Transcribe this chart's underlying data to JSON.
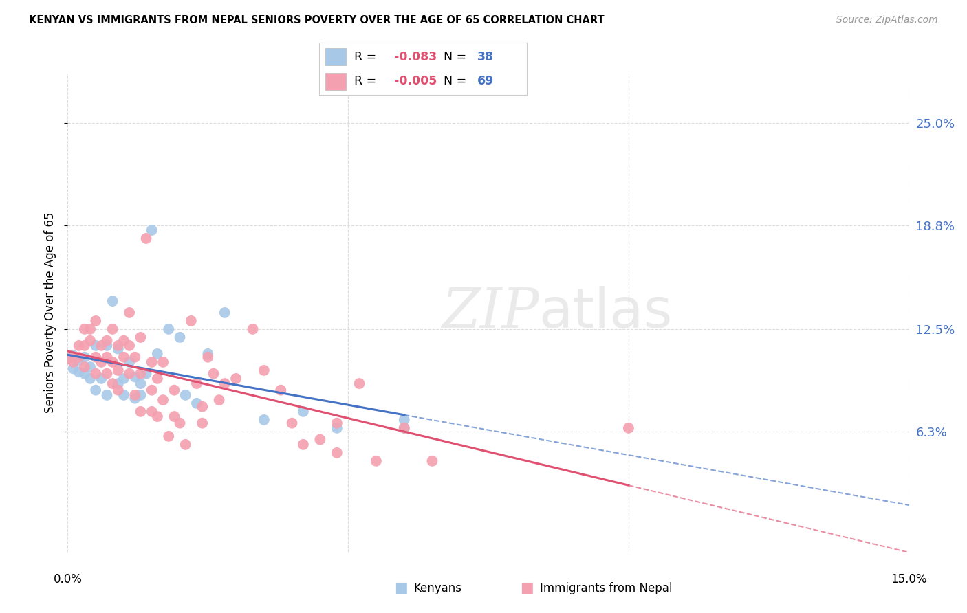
{
  "title": "KENYAN VS IMMIGRANTS FROM NEPAL SENIORS POVERTY OVER THE AGE OF 65 CORRELATION CHART",
  "source": "Source: ZipAtlas.com",
  "ylabel": "Seniors Poverty Over the Age of 65",
  "ytick_labels": [
    "25.0%",
    "18.8%",
    "12.5%",
    "6.3%"
  ],
  "ytick_values": [
    0.25,
    0.188,
    0.125,
    0.063
  ],
  "xlim": [
    0.0,
    0.15
  ],
  "ylim": [
    -0.01,
    0.28
  ],
  "legend_r_kenyan": "-0.083",
  "legend_n_kenyan": "38",
  "legend_r_nepal": "-0.005",
  "legend_n_nepal": "69",
  "kenyan_color": "#A8C8E8",
  "nepal_color": "#F4A0B0",
  "kenyan_line_color": "#4472C4",
  "nepal_line_color": "#E05070",
  "kenyan_scatter": [
    [
      0.0,
      0.107
    ],
    [
      0.001,
      0.109
    ],
    [
      0.001,
      0.101
    ],
    [
      0.002,
      0.106
    ],
    [
      0.002,
      0.099
    ],
    [
      0.003,
      0.108
    ],
    [
      0.003,
      0.098
    ],
    [
      0.004,
      0.102
    ],
    [
      0.004,
      0.095
    ],
    [
      0.005,
      0.115
    ],
    [
      0.005,
      0.088
    ],
    [
      0.006,
      0.095
    ],
    [
      0.007,
      0.115
    ],
    [
      0.007,
      0.085
    ],
    [
      0.008,
      0.142
    ],
    [
      0.009,
      0.113
    ],
    [
      0.009,
      0.092
    ],
    [
      0.01,
      0.095
    ],
    [
      0.01,
      0.085
    ],
    [
      0.011,
      0.105
    ],
    [
      0.012,
      0.096
    ],
    [
      0.012,
      0.083
    ],
    [
      0.013,
      0.092
    ],
    [
      0.013,
      0.085
    ],
    [
      0.014,
      0.098
    ],
    [
      0.015,
      0.185
    ],
    [
      0.016,
      0.11
    ],
    [
      0.018,
      0.125
    ],
    [
      0.02,
      0.12
    ],
    [
      0.021,
      0.085
    ],
    [
      0.023,
      0.08
    ],
    [
      0.025,
      0.11
    ],
    [
      0.028,
      0.135
    ],
    [
      0.035,
      0.07
    ],
    [
      0.042,
      0.075
    ],
    [
      0.048,
      0.065
    ],
    [
      0.06,
      0.07
    ],
    [
      0.06,
      0.065
    ]
  ],
  "nepal_scatter": [
    [
      0.0,
      0.107
    ],
    [
      0.001,
      0.108
    ],
    [
      0.001,
      0.105
    ],
    [
      0.002,
      0.115
    ],
    [
      0.002,
      0.108
    ],
    [
      0.003,
      0.125
    ],
    [
      0.003,
      0.115
    ],
    [
      0.003,
      0.102
    ],
    [
      0.004,
      0.125
    ],
    [
      0.004,
      0.118
    ],
    [
      0.005,
      0.13
    ],
    [
      0.005,
      0.108
    ],
    [
      0.005,
      0.098
    ],
    [
      0.006,
      0.115
    ],
    [
      0.006,
      0.105
    ],
    [
      0.007,
      0.118
    ],
    [
      0.007,
      0.108
    ],
    [
      0.007,
      0.098
    ],
    [
      0.008,
      0.125
    ],
    [
      0.008,
      0.105
    ],
    [
      0.008,
      0.092
    ],
    [
      0.009,
      0.115
    ],
    [
      0.009,
      0.1
    ],
    [
      0.009,
      0.088
    ],
    [
      0.01,
      0.118
    ],
    [
      0.01,
      0.108
    ],
    [
      0.011,
      0.135
    ],
    [
      0.011,
      0.115
    ],
    [
      0.011,
      0.098
    ],
    [
      0.012,
      0.108
    ],
    [
      0.012,
      0.085
    ],
    [
      0.013,
      0.12
    ],
    [
      0.013,
      0.098
    ],
    [
      0.013,
      0.075
    ],
    [
      0.014,
      0.18
    ],
    [
      0.015,
      0.105
    ],
    [
      0.015,
      0.088
    ],
    [
      0.015,
      0.075
    ],
    [
      0.016,
      0.095
    ],
    [
      0.016,
      0.072
    ],
    [
      0.017,
      0.105
    ],
    [
      0.017,
      0.082
    ],
    [
      0.018,
      0.06
    ],
    [
      0.019,
      0.088
    ],
    [
      0.019,
      0.072
    ],
    [
      0.02,
      0.068
    ],
    [
      0.021,
      0.055
    ],
    [
      0.022,
      0.13
    ],
    [
      0.023,
      0.092
    ],
    [
      0.024,
      0.078
    ],
    [
      0.024,
      0.068
    ],
    [
      0.025,
      0.108
    ],
    [
      0.026,
      0.098
    ],
    [
      0.027,
      0.082
    ],
    [
      0.028,
      0.092
    ],
    [
      0.03,
      0.095
    ],
    [
      0.033,
      0.125
    ],
    [
      0.035,
      0.1
    ],
    [
      0.038,
      0.088
    ],
    [
      0.04,
      0.068
    ],
    [
      0.042,
      0.055
    ],
    [
      0.045,
      0.058
    ],
    [
      0.048,
      0.05
    ],
    [
      0.048,
      0.068
    ],
    [
      0.052,
      0.092
    ],
    [
      0.055,
      0.045
    ],
    [
      0.06,
      0.065
    ],
    [
      0.065,
      0.045
    ],
    [
      0.1,
      0.065
    ]
  ],
  "background_color": "#FFFFFF",
  "grid_color": "#DDDDDD",
  "watermark_color": "#CCCCCC"
}
